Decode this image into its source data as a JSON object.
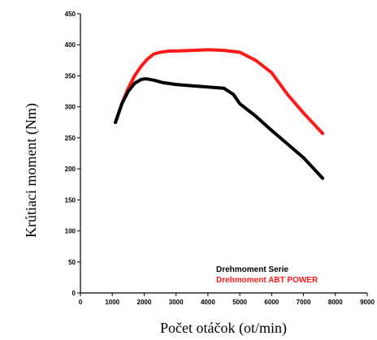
{
  "chart_data": {
    "type": "line",
    "title": "",
    "xlabel": "Počet otáčok (ot/min)",
    "ylabel": "Krútiaci moment (Nm)",
    "xlim": [
      0,
      9000
    ],
    "ylim": [
      0,
      450
    ],
    "xticks": [
      0,
      1000,
      2000,
      3000,
      4000,
      5000,
      6000,
      7000,
      8000,
      9000
    ],
    "yticks": [
      0,
      50,
      100,
      150,
      200,
      250,
      300,
      350,
      400,
      450
    ],
    "grid": false,
    "legend_position": "bottom-right",
    "series": [
      {
        "name": "Drehmoment Serie",
        "color": "#000000",
        "x": [
          1100,
          1300,
          1500,
          1700,
          1900,
          2000,
          2100,
          2300,
          2600,
          3000,
          3500,
          4000,
          4500,
          4800,
          5000,
          5500,
          6000,
          6500,
          7000,
          7600
        ],
        "y": [
          275,
          305,
          325,
          338,
          344,
          345,
          345,
          343,
          339,
          336,
          334,
          332,
          330,
          320,
          305,
          285,
          262,
          240,
          218,
          185
        ]
      },
      {
        "name": "Drehmoment ABT POWER",
        "color": "#ff1a1a",
        "x": [
          1100,
          1300,
          1500,
          1700,
          1900,
          2100,
          2300,
          2500,
          2800,
          3000,
          3500,
          4000,
          4500,
          5000,
          5500,
          6000,
          6500,
          7000,
          7600
        ],
        "y": [
          275,
          305,
          330,
          350,
          365,
          377,
          385,
          388,
          390,
          390,
          391,
          392,
          391,
          388,
          375,
          355,
          320,
          290,
          257
        ]
      }
    ]
  }
}
